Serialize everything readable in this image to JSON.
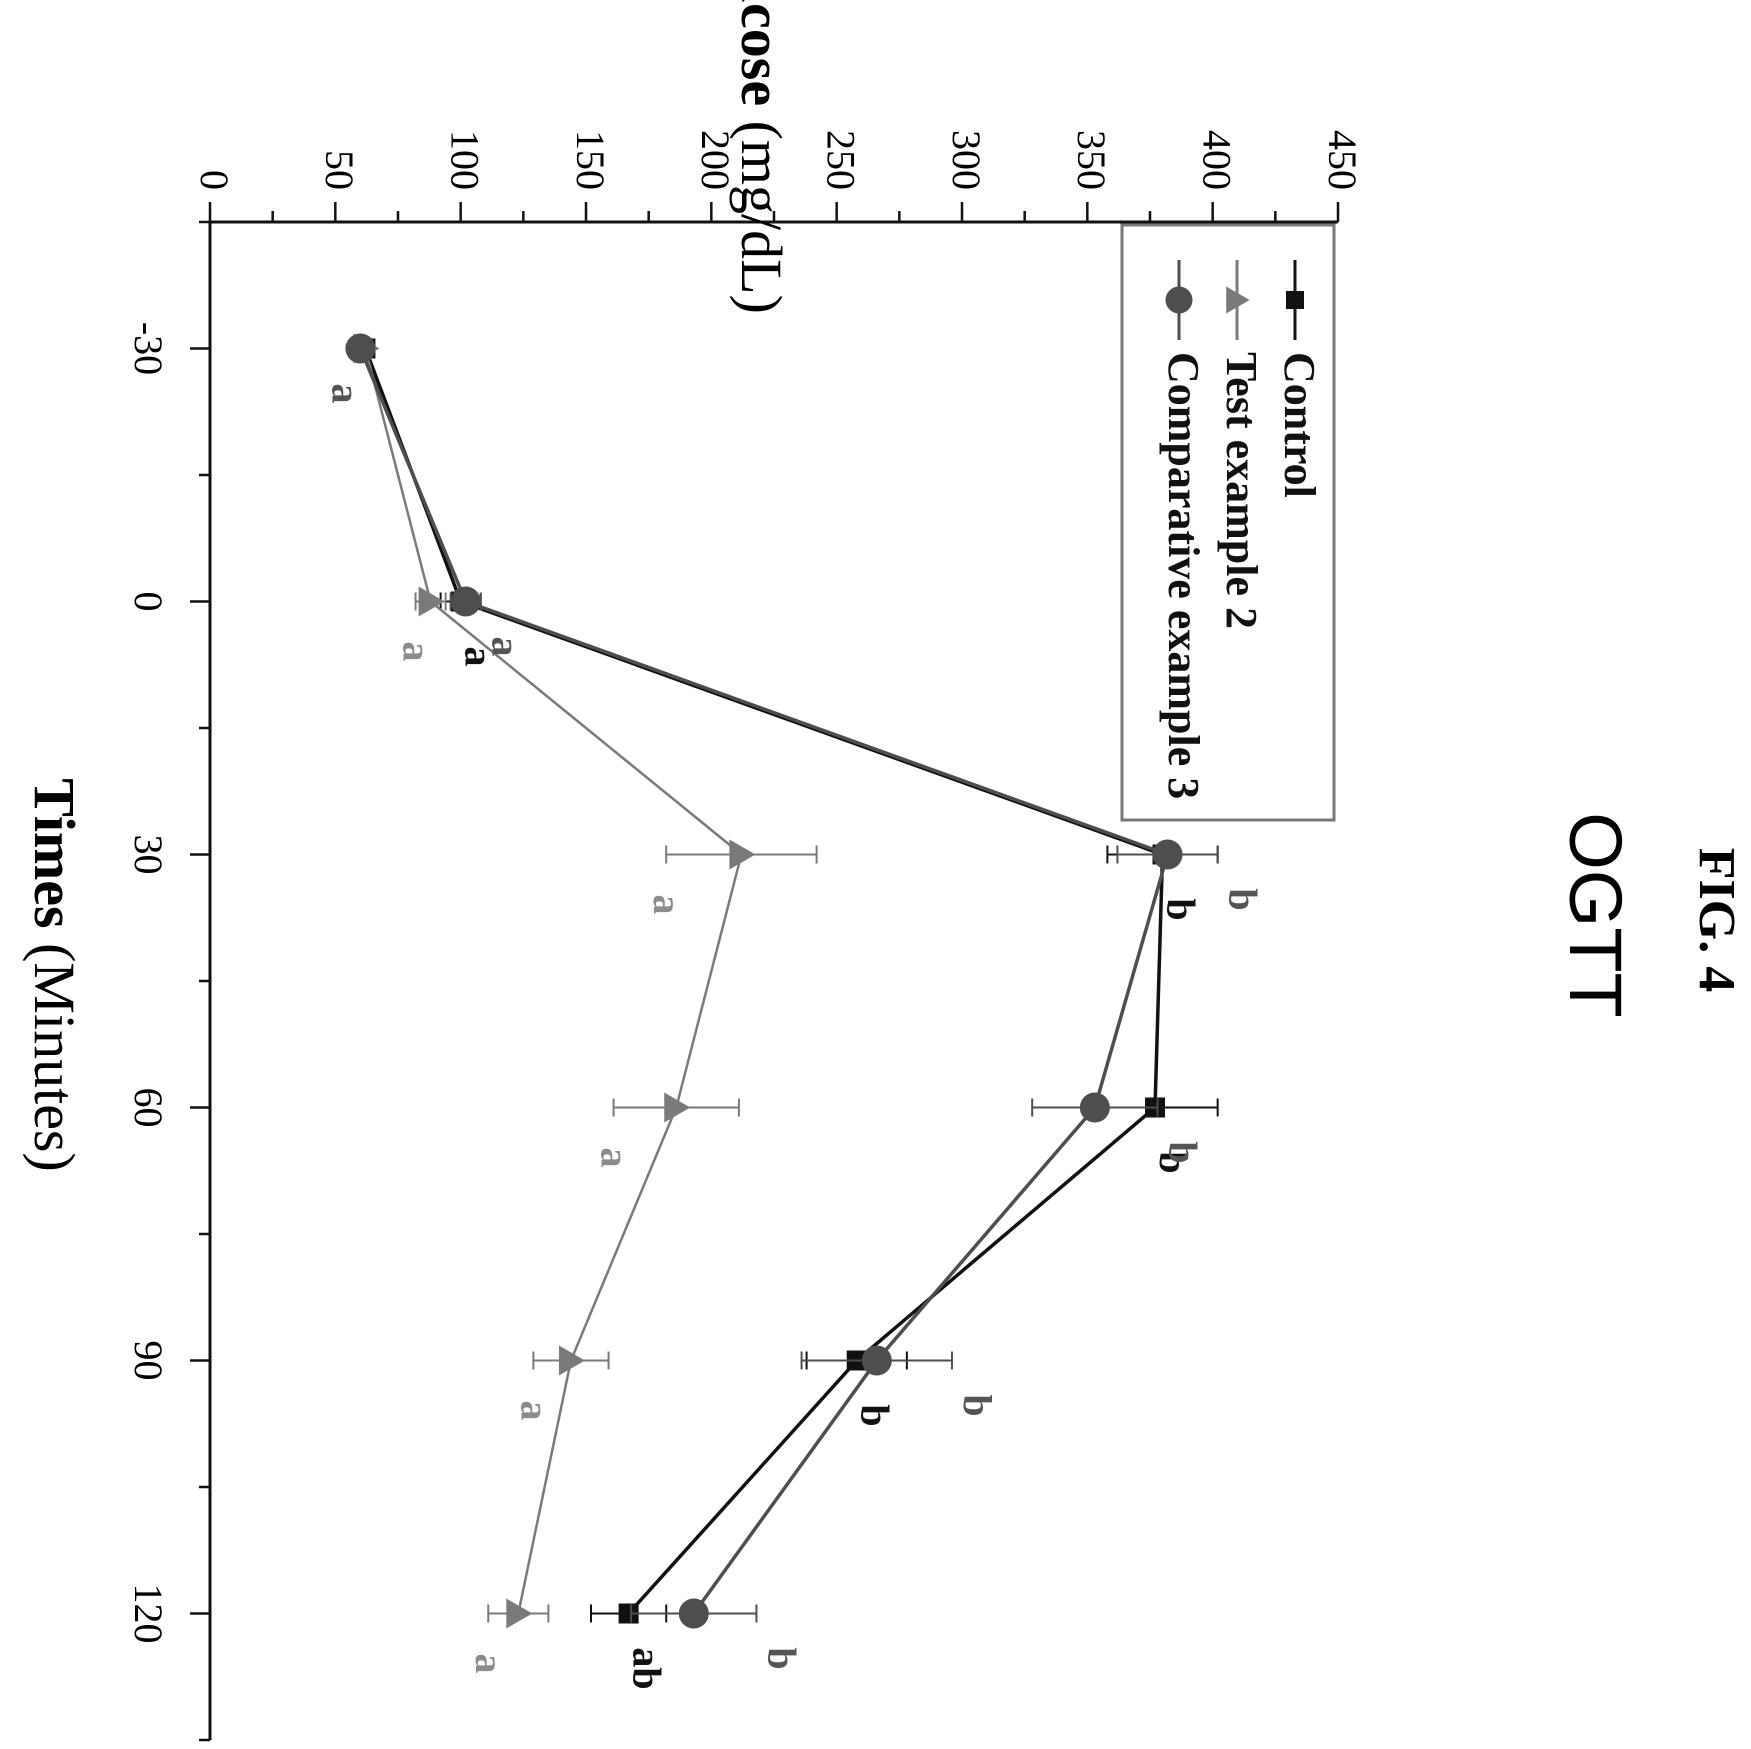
{
  "figure": {
    "fig_label": "FIG. 4",
    "title": "OGTT"
  },
  "chart_data": {
    "type": "line",
    "orientation": "rotated 90° clockwise on the page",
    "xlabel_bold": "Times",
    "xlabel_rest": "(Minutes)",
    "ylabel_bold": "Blood glucose",
    "ylabel_rest": "(mg/dL)",
    "xlim": [
      -45,
      135
    ],
    "ylim": [
      0,
      450
    ],
    "x_ticks": [
      -30,
      0,
      30,
      60,
      90,
      120
    ],
    "y_ticks": [
      0,
      50,
      100,
      150,
      200,
      250,
      300,
      350,
      400,
      450
    ],
    "x": [
      -30,
      0,
      30,
      60,
      90,
      120
    ],
    "legend_position": "top-right",
    "series": [
      {
        "name": "Control",
        "marker": "square",
        "color": "#111111",
        "values": [
          62,
          100,
          380,
          377,
          258,
          167
        ],
        "errors": [
          0,
          8,
          22,
          25,
          20,
          15
        ],
        "letters": [
          "",
          "a",
          "b",
          "b",
          "b",
          "ab"
        ],
        "letter_color": "#111111"
      },
      {
        "name": "Test example 2",
        "marker": "triangle",
        "color": "#7a7a7a",
        "values": [
          62,
          88,
          212,
          186,
          144,
          123
        ],
        "errors": [
          0,
          6,
          30,
          25,
          15,
          12
        ],
        "letters": [
          "",
          "a",
          "a",
          "a",
          "a",
          "a"
        ],
        "letter_color": "#8c8c8c"
      },
      {
        "name": "Comparative example 3",
        "marker": "circle",
        "color": "#4e4e4e",
        "values": [
          60,
          102,
          382,
          353,
          266,
          193
        ],
        "errors": [
          0,
          6,
          20,
          25,
          30,
          25
        ],
        "letters": [
          "a",
          "a",
          "b",
          "b",
          "b",
          "b"
        ],
        "letter_color": "#555555"
      }
    ]
  }
}
